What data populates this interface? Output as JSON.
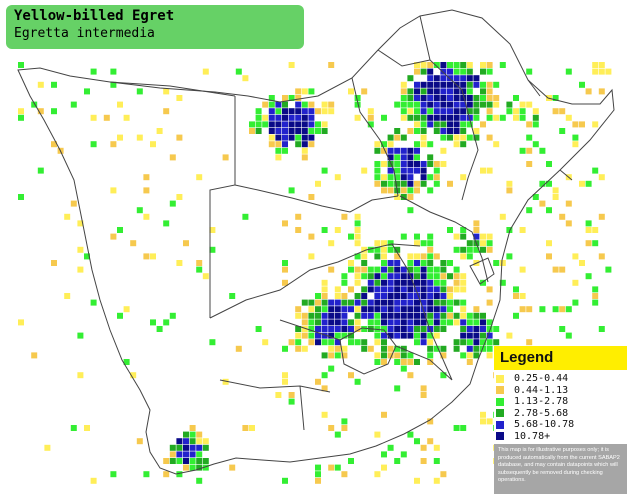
{
  "title": {
    "common_name": "Yellow-billed Egret",
    "scientific_name": "Egretta intermedia"
  },
  "legend": {
    "heading": "Legend",
    "classes": [
      {
        "range": "0.25-0.44",
        "color": "#ffee58"
      },
      {
        "range": "0.44-1.13",
        "color": "#f6c94e"
      },
      {
        "range": "1.13-2.78",
        "color": "#33ee33"
      },
      {
        "range": "2.78-5.68",
        "color": "#22aa22"
      },
      {
        "range": "5.68-10.78",
        "color": "#2222cc"
      },
      {
        "range": "10.78+",
        "color": "#0a0a88"
      }
    ],
    "disclaimer": "This map is for illustrative purposes only; it is produced automatically from the current SABAP2 database, and may contain datapoints which will subsequently be removed during checking operations."
  },
  "colors": {
    "title_box": "#66d166",
    "legend_header": "#ffee00",
    "legend_panel": "#a6a6a6",
    "grid_lines": "#ffffff",
    "borders": "#444444"
  },
  "map_layer": {
    "type": "occurrence grid",
    "cell_classes": [
      "0.25-0.44",
      "0.44-1.13",
      "1.13-2.78",
      "2.78-5.68",
      "5.68-10.78",
      "10.78+"
    ]
  }
}
